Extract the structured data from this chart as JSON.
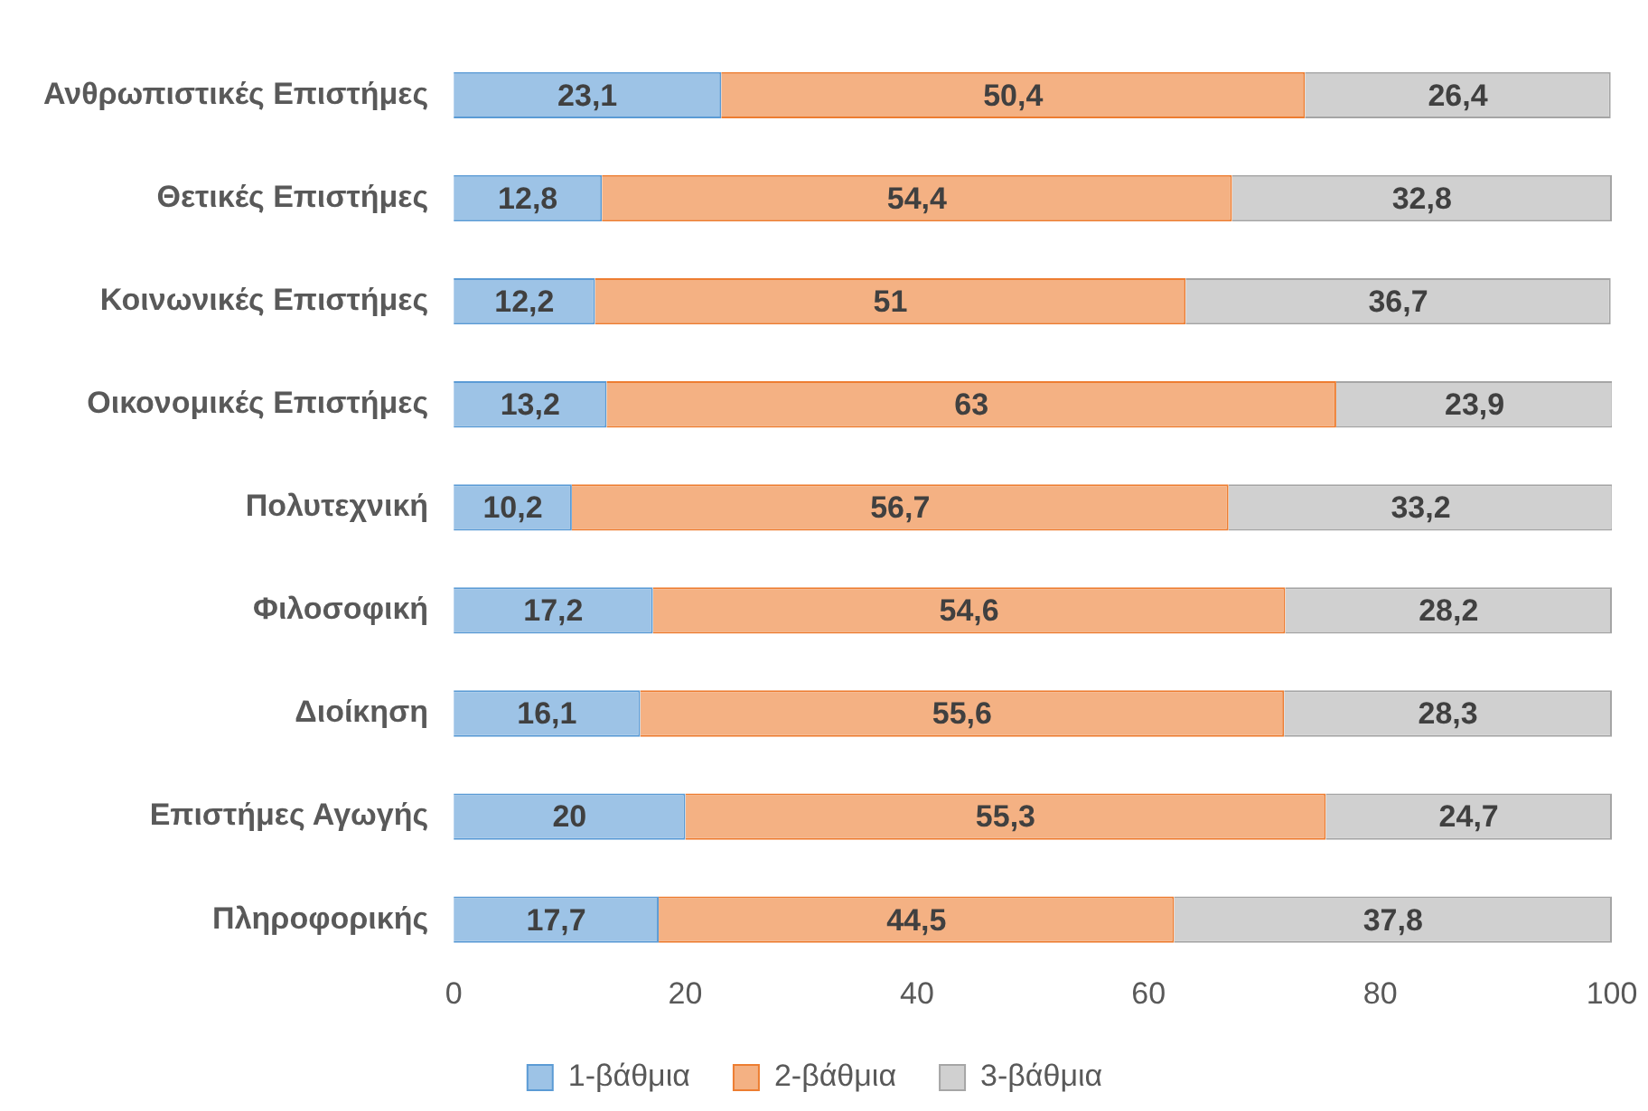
{
  "chart_data": {
    "type": "bar",
    "orientation": "horizontal",
    "stacked": true,
    "categories": [
      "Ανθρωπιστικές Επιστήμες",
      "Θετικές Επιστήμες",
      "Κοινωνικές Επιστήμες",
      "Οικονομικές Επιστήμες",
      "Πολυτεχνική",
      "Φιλοσοφική",
      "Διοίκηση",
      "Επιστήμες Αγωγής",
      "Πληροφορικής"
    ],
    "series": [
      {
        "name": "1-βάθμια",
        "color": "#9dc3e6",
        "values": [
          23.1,
          12.8,
          12.2,
          13.2,
          10.2,
          17.2,
          16.1,
          20,
          17.7
        ],
        "value_labels": [
          "23,1",
          "12,8",
          "12,2",
          "13,2",
          "10,2",
          "17,2",
          "16,1",
          "20",
          "17,7"
        ]
      },
      {
        "name": "2-βάθμια",
        "color": "#f4b183",
        "values": [
          50.4,
          54.4,
          51,
          63,
          56.7,
          54.6,
          55.6,
          55.3,
          44.5
        ],
        "value_labels": [
          "50,4",
          "54,4",
          "51",
          "63",
          "56,7",
          "54,6",
          "55,6",
          "55,3",
          "44,5"
        ]
      },
      {
        "name": "3-βάθμια",
        "color": "#d0d0d0",
        "values": [
          26.4,
          32.8,
          36.7,
          23.9,
          33.2,
          28.2,
          28.3,
          24.7,
          37.8
        ],
        "value_labels": [
          "26,4",
          "32,8",
          "36,7",
          "23,9",
          "33,2",
          "28,2",
          "28,3",
          "24,7",
          "37,8"
        ]
      }
    ],
    "xlim": [
      0,
      100
    ],
    "xticks": [
      0,
      20,
      40,
      60,
      80,
      100
    ],
    "grid": false,
    "legend": "bottom"
  }
}
